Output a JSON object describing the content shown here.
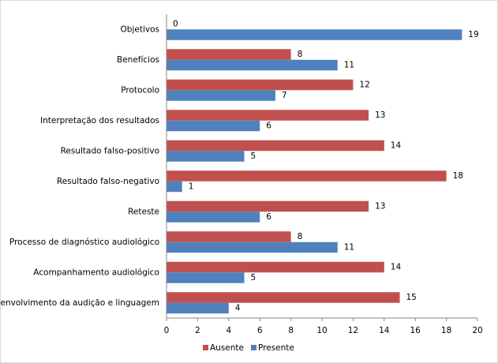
{
  "chart_data": {
    "type": "bar",
    "orientation": "horizontal",
    "categories": [
      "Objetivos",
      "Benefícios",
      "Protocolo",
      "Interpretação dos resultados",
      "Resultado falso-positivo",
      "Resultado falso-negativo",
      "Reteste",
      "Processo de diagnóstico audiológico",
      "Acompanhamento audiológico",
      "Desenvolvimento da audição e linguagem"
    ],
    "series": [
      {
        "name": "Ausente",
        "color": "#c0504d",
        "values": [
          0,
          8,
          12,
          13,
          14,
          18,
          13,
          8,
          14,
          15
        ]
      },
      {
        "name": "Presente",
        "color": "#4f81bd",
        "values": [
          19,
          11,
          7,
          6,
          5,
          1,
          6,
          11,
          5,
          4
        ]
      }
    ],
    "xlim": [
      0,
      20
    ],
    "xticks": [
      0,
      2,
      4,
      6,
      8,
      10,
      12,
      14,
      16,
      18,
      20
    ],
    "grid": false,
    "legend": "bottom"
  }
}
